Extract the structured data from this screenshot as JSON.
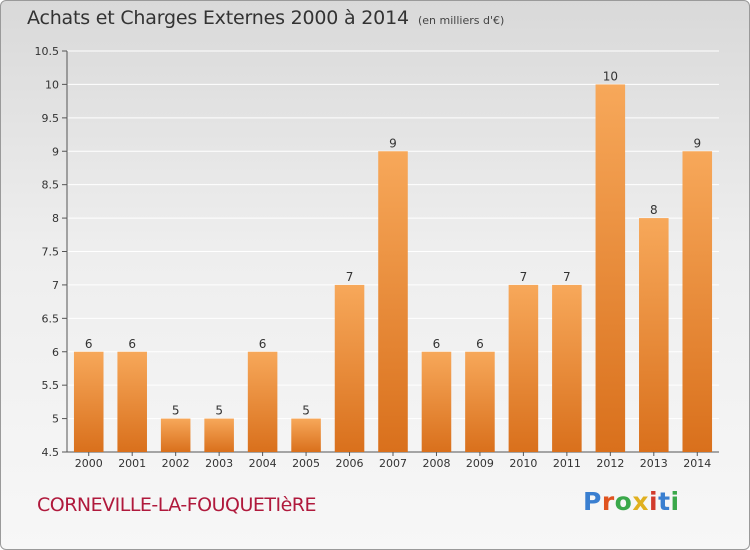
{
  "title": "Achats et Charges Externes 2000 à 2014",
  "unit_note": "(en milliers d'€)",
  "commune": "CORNEVILLE-LA-FOUQUETIèRE",
  "logo": {
    "text": "Proxiti",
    "colors": [
      "#3a7fd0",
      "#e0531f",
      "#3aa84a",
      "#e0b01f",
      "#d23b2d",
      "#3a7fd0",
      "#3aa84a"
    ]
  },
  "colors": {
    "bar_light": "#f7a85a",
    "bar_dark": "#d9701c",
    "grid": "#ffffff",
    "text": "#333333"
  },
  "chart_data": {
    "type": "bar",
    "categories": [
      "2000",
      "2001",
      "2002",
      "2003",
      "2004",
      "2005",
      "2006",
      "2007",
      "2008",
      "2009",
      "2010",
      "2011",
      "2012",
      "2013",
      "2014"
    ],
    "values": [
      6,
      6,
      5,
      5,
      6,
      5,
      7,
      9,
      6,
      6,
      7,
      7,
      10,
      8,
      9
    ],
    "ylim": [
      4.5,
      10.5
    ],
    "yticks": [
      "4.5",
      "5",
      "5.5",
      "6",
      "6.5",
      "7",
      "7.5",
      "8",
      "8.5",
      "9",
      "9.5",
      "10",
      "10.5"
    ],
    "xlabel": "",
    "ylabel": "",
    "grid": true
  }
}
